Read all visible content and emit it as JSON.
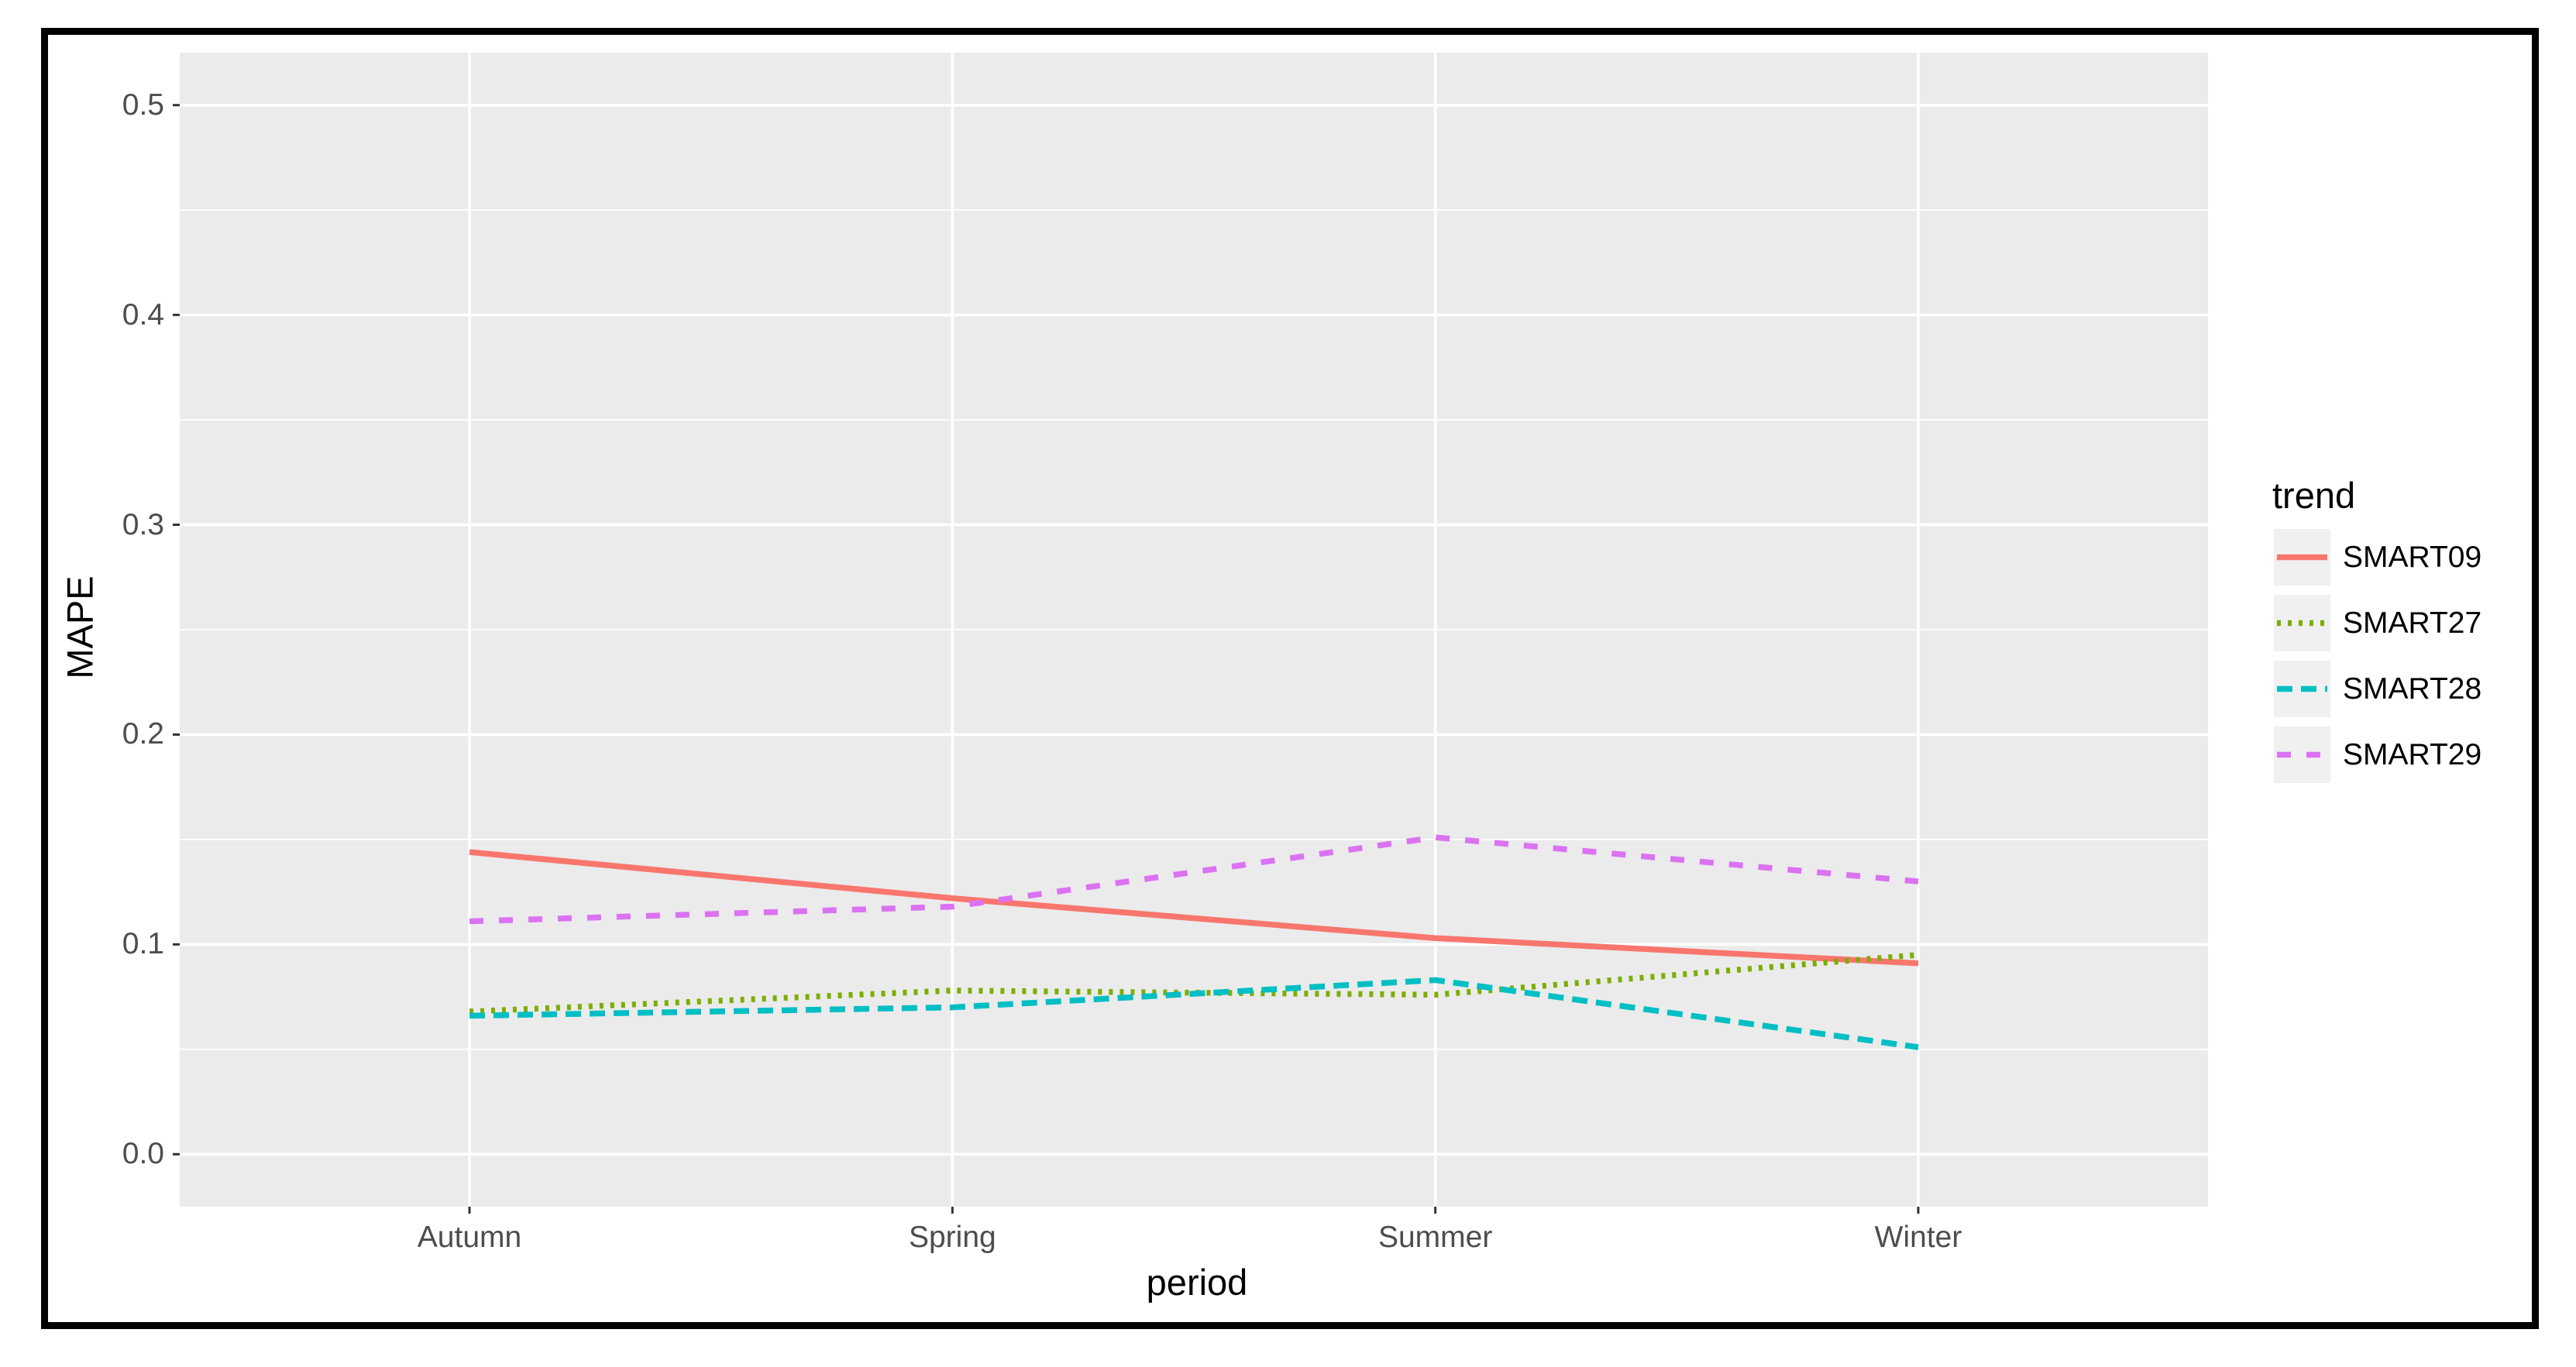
{
  "figure": {
    "background_color": "#ffffff",
    "frame_color": "#000000",
    "panel_color": "#EBEBEB",
    "grid_color": "#FFFFFF",
    "tick_text_color": "#4D4D4D",
    "axis_title_color": "#000000"
  },
  "chart_data": {
    "type": "line",
    "title": "",
    "xlabel": "period",
    "ylabel": "MAPE",
    "categories": [
      "Autumn",
      "Spring",
      "Summer",
      "Winter"
    ],
    "series": [
      {
        "name": "SMART09",
        "color": "#F8766D",
        "linetype": "solid",
        "values": [
          0.144,
          0.122,
          0.103,
          0.091
        ]
      },
      {
        "name": "SMART27",
        "color": "#7CAE00",
        "linetype": "dotted",
        "values": [
          0.068,
          0.078,
          0.076,
          0.095
        ]
      },
      {
        "name": "SMART28",
        "color": "#00BFC4",
        "linetype": "dashed",
        "values": [
          0.066,
          0.07,
          0.083,
          0.051
        ]
      },
      {
        "name": "SMART29",
        "color": "#DB72F2",
        "linetype": "longdash",
        "values": [
          0.111,
          0.118,
          0.151,
          0.13
        ]
      }
    ],
    "yticks": [
      0.0,
      0.1,
      0.2,
      0.3,
      0.4,
      0.5
    ],
    "ytick_labels": [
      "0.0",
      "0.1",
      "0.2",
      "0.3",
      "0.4",
      "0.5"
    ],
    "ylim": [
      -0.025,
      0.525
    ],
    "grid": true,
    "legend": {
      "title": "trend",
      "position": "right"
    }
  }
}
